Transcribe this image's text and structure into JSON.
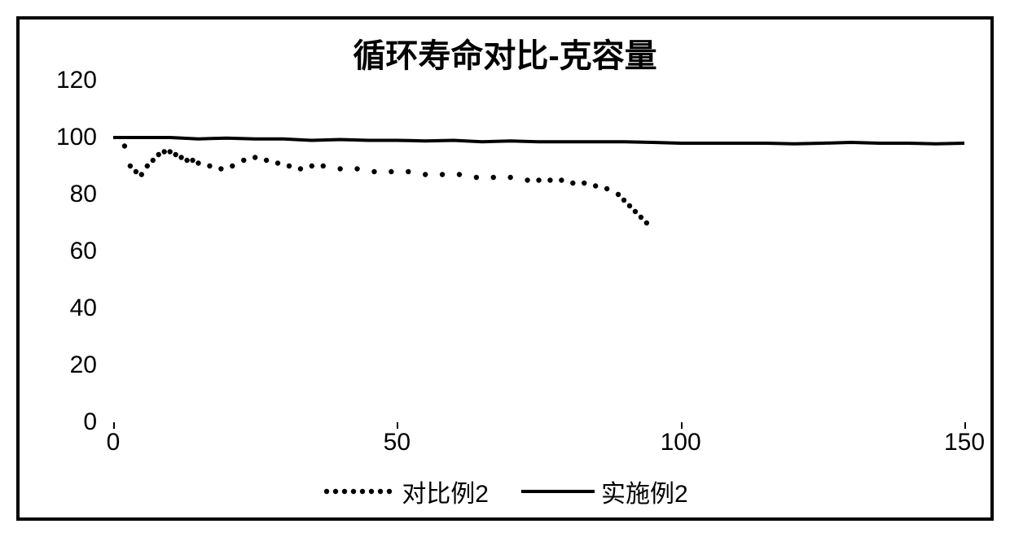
{
  "chart": {
    "type": "line",
    "title": "循环寿命对比-克容量",
    "title_fontsize": 40,
    "title_fontweight": "bold",
    "label_fontsize": 30,
    "xlim": [
      0,
      150
    ],
    "ylim": [
      0,
      120
    ],
    "xticks": [
      0,
      50,
      100,
      150
    ],
    "yticks": [
      0,
      20,
      40,
      60,
      80,
      100,
      120
    ],
    "background_color": "#ffffff",
    "border_color": "#000000",
    "border_width": 4,
    "grid": false,
    "series": [
      {
        "name": "对比例2",
        "style": "dotted",
        "color": "#000000",
        "dot_radius": 3.2,
        "x": [
          2,
          3,
          4,
          5,
          6,
          7,
          8,
          9,
          10,
          11,
          12,
          13,
          14,
          15,
          17,
          19,
          21,
          23,
          25,
          27,
          29,
          31,
          33,
          35,
          37,
          40,
          43,
          46,
          49,
          52,
          55,
          58,
          61,
          64,
          67,
          70,
          73,
          75,
          77,
          79,
          81,
          83,
          85,
          87,
          89,
          90,
          91,
          92,
          93,
          94
        ],
        "y": [
          97,
          90,
          88,
          87,
          90,
          92,
          94,
          95,
          95,
          94,
          93,
          92,
          92,
          91,
          90,
          89,
          90,
          92,
          93,
          92,
          91,
          90,
          89,
          90,
          90,
          89,
          89,
          88,
          88,
          88,
          87,
          87,
          87,
          86,
          86,
          86,
          85,
          85,
          85,
          85,
          84,
          84,
          83,
          82,
          80,
          78,
          76,
          74,
          72,
          70
        ]
      },
      {
        "name": "实施例2",
        "style": "solid",
        "color": "#000000",
        "line_width": 4,
        "x": [
          0,
          5,
          10,
          15,
          20,
          25,
          30,
          35,
          40,
          45,
          50,
          55,
          60,
          65,
          70,
          75,
          80,
          85,
          90,
          95,
          100,
          105,
          110,
          115,
          120,
          125,
          130,
          135,
          140,
          145,
          150
        ],
        "y": [
          100,
          100,
          100,
          99.5,
          99.8,
          99.5,
          99.5,
          99,
          99.3,
          99,
          99,
          98.8,
          99,
          98.5,
          98.8,
          98.5,
          98.5,
          98.5,
          98.5,
          98.3,
          98,
          98,
          98,
          98,
          97.8,
          98,
          98.3,
          98,
          98,
          97.8,
          98
        ]
      }
    ],
    "legend": {
      "position": "bottom-center",
      "items": [
        "对比例2",
        "实施例2"
      ],
      "fontsize": 30
    }
  }
}
